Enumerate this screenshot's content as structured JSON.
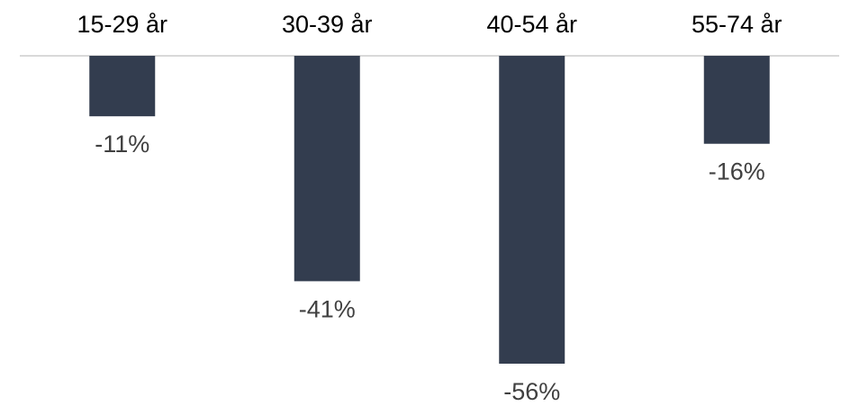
{
  "chart_data": {
    "type": "bar",
    "orientation": "vertical",
    "categories": [
      "15-29 år",
      "30-39 år",
      "40-54 år",
      "55-74 år"
    ],
    "values": [
      -11,
      -41,
      -56,
      -16
    ],
    "value_labels": [
      "-11%",
      "-41%",
      "-56%",
      "-16%"
    ],
    "title": "",
    "xlabel": "",
    "ylabel": "",
    "ylim": [
      -56,
      0
    ],
    "category_axis_position": "top",
    "value_labels_position": "below bar end",
    "grid": false,
    "legend": false,
    "colors": {
      "bar": "#333d4f",
      "axis_line": "#d9d9d9",
      "category_text": "#000000",
      "value_text": "#404040"
    }
  }
}
